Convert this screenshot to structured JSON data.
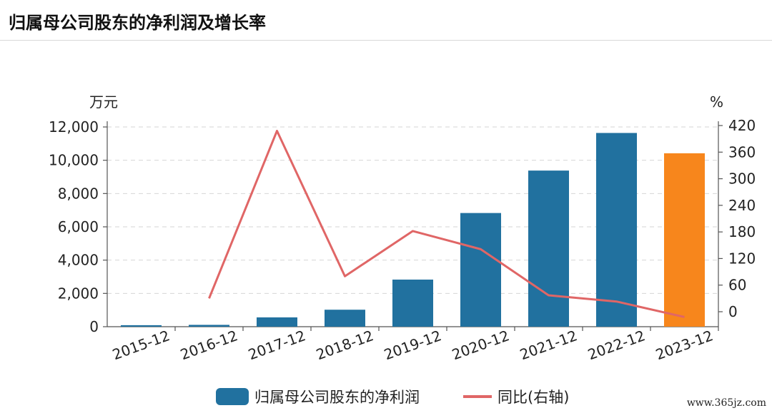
{
  "page": {
    "title": "归属母公司股东的净利润及增长率",
    "watermark": "www.365jz.com"
  },
  "chart_data": {
    "type": "bar",
    "categories": [
      "2015-12",
      "2016-12",
      "2017-12",
      "2018-12",
      "2019-12",
      "2020-12",
      "2021-12",
      "2022-12",
      "2023-12"
    ],
    "series": [
      {
        "name": "归属母公司股东的净利润",
        "kind": "bar",
        "axis": "left",
        "values": [
          90,
          110,
          560,
          1020,
          2830,
          6830,
          9380,
          11640,
          10420
        ],
        "color": "#21719f",
        "highlight_last_color": "#f7861c"
      },
      {
        "name": "同比(右轴)",
        "kind": "line",
        "axis": "right",
        "values": [
          null,
          30,
          408,
          80,
          182,
          141,
          37,
          23,
          -12
        ],
        "color": "#e06666"
      }
    ],
    "y_left": {
      "unit": "万元",
      "ylim": [
        0,
        12000
      ],
      "ticks": [
        0,
        2000,
        4000,
        6000,
        8000,
        10000,
        12000
      ],
      "tick_labels": [
        "0",
        "2,000",
        "4,000",
        "6,000",
        "8,000",
        "10,000",
        "12,000"
      ]
    },
    "y_right": {
      "unit": "%",
      "ylim": [
        -30,
        420
      ],
      "ticks": [
        0,
        60,
        120,
        180,
        240,
        300,
        360,
        420
      ],
      "tick_labels": [
        "0",
        "60",
        "120",
        "180",
        "240",
        "300",
        "360",
        "420"
      ]
    },
    "grid": "horizontal-dashed",
    "legend": "bottom-center"
  }
}
